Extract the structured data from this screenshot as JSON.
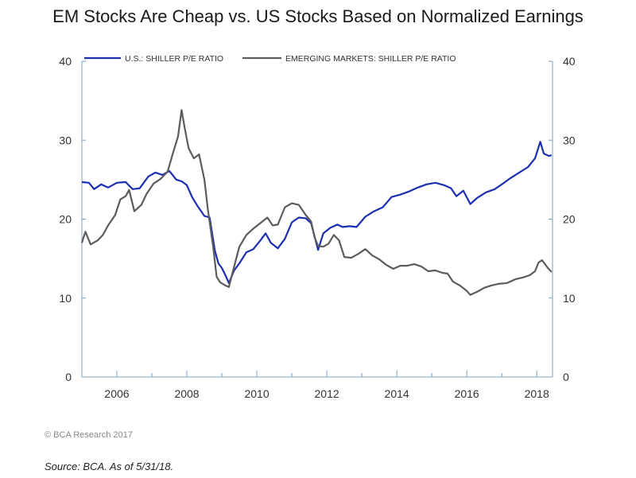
{
  "title": "EM Stocks Are Cheap vs. US Stocks Based on Normalized Earnings",
  "copyright": "© BCA Research 2017",
  "source": "Source: BCA. As of 5/31/18.",
  "colors": {
    "us": "#1c2fb0",
    "em": "#5c5c5c",
    "axis": "#7aa0c4"
  },
  "chart_data": {
    "type": "line",
    "title": "EM Stocks Are Cheap vs. US Stocks Based on Normalized Earnings",
    "xlabel": "",
    "ylabel": "",
    "xlim": [
      2005.0,
      2018.45
    ],
    "ylim": [
      0,
      40
    ],
    "y_ticks": [
      0,
      10,
      20,
      30,
      40
    ],
    "x_ticks": [
      2006,
      2008,
      2010,
      2012,
      2014,
      2016,
      2018
    ],
    "grid": false,
    "legend_placement": "top-left",
    "series": [
      {
        "name": "U.S.: SHILLER P/E RATIO",
        "color": "#1c2fb0",
        "points": [
          [
            2005.0,
            24.7
          ],
          [
            2005.2,
            24.6
          ],
          [
            2005.35,
            23.8
          ],
          [
            2005.55,
            24.4
          ],
          [
            2005.75,
            24.0
          ],
          [
            2006.0,
            24.6
          ],
          [
            2006.25,
            24.7
          ],
          [
            2006.45,
            23.8
          ],
          [
            2006.65,
            23.9
          ],
          [
            2006.9,
            25.4
          ],
          [
            2007.1,
            25.9
          ],
          [
            2007.3,
            25.6
          ],
          [
            2007.5,
            26.1
          ],
          [
            2007.7,
            25.0
          ],
          [
            2007.85,
            24.8
          ],
          [
            2008.0,
            24.3
          ],
          [
            2008.15,
            22.8
          ],
          [
            2008.3,
            21.7
          ],
          [
            2008.5,
            20.4
          ],
          [
            2008.65,
            20.2
          ],
          [
            2008.8,
            16.0
          ],
          [
            2008.9,
            14.4
          ],
          [
            2009.0,
            13.8
          ],
          [
            2009.1,
            12.9
          ],
          [
            2009.2,
            11.9
          ],
          [
            2009.35,
            13.5
          ],
          [
            2009.5,
            14.4
          ],
          [
            2009.7,
            15.8
          ],
          [
            2009.9,
            16.2
          ],
          [
            2010.1,
            17.3
          ],
          [
            2010.25,
            18.2
          ],
          [
            2010.4,
            17.0
          ],
          [
            2010.6,
            16.3
          ],
          [
            2010.8,
            17.5
          ],
          [
            2011.0,
            19.6
          ],
          [
            2011.2,
            20.2
          ],
          [
            2011.4,
            20.1
          ],
          [
            2011.55,
            19.5
          ],
          [
            2011.75,
            16.1
          ],
          [
            2011.9,
            18.2
          ],
          [
            2012.1,
            18.9
          ],
          [
            2012.3,
            19.3
          ],
          [
            2012.45,
            19.0
          ],
          [
            2012.65,
            19.1
          ],
          [
            2012.85,
            19.0
          ],
          [
            2013.1,
            20.3
          ],
          [
            2013.35,
            21.0
          ],
          [
            2013.6,
            21.5
          ],
          [
            2013.85,
            22.8
          ],
          [
            2014.1,
            23.1
          ],
          [
            2014.35,
            23.5
          ],
          [
            2014.6,
            24.0
          ],
          [
            2014.85,
            24.4
          ],
          [
            2015.1,
            24.6
          ],
          [
            2015.35,
            24.3
          ],
          [
            2015.55,
            23.9
          ],
          [
            2015.7,
            22.9
          ],
          [
            2015.9,
            23.6
          ],
          [
            2016.1,
            21.9
          ],
          [
            2016.3,
            22.7
          ],
          [
            2016.55,
            23.4
          ],
          [
            2016.8,
            23.8
          ],
          [
            2017.0,
            24.4
          ],
          [
            2017.25,
            25.2
          ],
          [
            2017.5,
            25.9
          ],
          [
            2017.75,
            26.6
          ],
          [
            2017.95,
            27.7
          ],
          [
            2018.1,
            29.8
          ],
          [
            2018.2,
            28.3
          ],
          [
            2018.35,
            28.0
          ],
          [
            2018.42,
            28.1
          ]
        ]
      },
      {
        "name": "EMERGING MARKETS: SHILLER P/E RATIO",
        "color": "#5c5c5c",
        "points": [
          [
            2005.0,
            17.0
          ],
          [
            2005.1,
            18.4
          ],
          [
            2005.25,
            16.8
          ],
          [
            2005.45,
            17.3
          ],
          [
            2005.6,
            18.0
          ],
          [
            2005.75,
            19.2
          ],
          [
            2005.95,
            20.5
          ],
          [
            2006.1,
            22.5
          ],
          [
            2006.25,
            22.9
          ],
          [
            2006.35,
            23.7
          ],
          [
            2006.5,
            21.0
          ],
          [
            2006.7,
            21.8
          ],
          [
            2006.85,
            23.2
          ],
          [
            2007.05,
            24.5
          ],
          [
            2007.25,
            25.1
          ],
          [
            2007.45,
            26.0
          ],
          [
            2007.6,
            28.3
          ],
          [
            2007.75,
            30.5
          ],
          [
            2007.85,
            33.8
          ],
          [
            2007.95,
            31.3
          ],
          [
            2008.05,
            29.0
          ],
          [
            2008.2,
            27.7
          ],
          [
            2008.35,
            28.2
          ],
          [
            2008.5,
            25.0
          ],
          [
            2008.6,
            21.2
          ],
          [
            2008.75,
            16.5
          ],
          [
            2008.85,
            12.7
          ],
          [
            2008.95,
            12.0
          ],
          [
            2009.1,
            11.6
          ],
          [
            2009.2,
            11.4
          ],
          [
            2009.35,
            14.0
          ],
          [
            2009.5,
            16.5
          ],
          [
            2009.7,
            18.0
          ],
          [
            2009.9,
            18.8
          ],
          [
            2010.1,
            19.5
          ],
          [
            2010.3,
            20.2
          ],
          [
            2010.45,
            19.2
          ],
          [
            2010.6,
            19.3
          ],
          [
            2010.8,
            21.5
          ],
          [
            2011.0,
            22.0
          ],
          [
            2011.2,
            21.8
          ],
          [
            2011.4,
            20.5
          ],
          [
            2011.55,
            19.7
          ],
          [
            2011.65,
            17.7
          ],
          [
            2011.75,
            16.6
          ],
          [
            2011.9,
            16.5
          ],
          [
            2012.05,
            16.9
          ],
          [
            2012.2,
            18.0
          ],
          [
            2012.35,
            17.3
          ],
          [
            2012.5,
            15.2
          ],
          [
            2012.7,
            15.1
          ],
          [
            2012.9,
            15.6
          ],
          [
            2013.1,
            16.2
          ],
          [
            2013.3,
            15.4
          ],
          [
            2013.5,
            14.9
          ],
          [
            2013.7,
            14.2
          ],
          [
            2013.9,
            13.7
          ],
          [
            2014.1,
            14.1
          ],
          [
            2014.3,
            14.1
          ],
          [
            2014.5,
            14.3
          ],
          [
            2014.7,
            14.0
          ],
          [
            2014.9,
            13.4
          ],
          [
            2015.1,
            13.5
          ],
          [
            2015.3,
            13.2
          ],
          [
            2015.45,
            13.1
          ],
          [
            2015.6,
            12.1
          ],
          [
            2015.8,
            11.6
          ],
          [
            2016.0,
            10.9
          ],
          [
            2016.1,
            10.4
          ],
          [
            2016.3,
            10.8
          ],
          [
            2016.5,
            11.3
          ],
          [
            2016.7,
            11.6
          ],
          [
            2016.9,
            11.8
          ],
          [
            2017.15,
            11.9
          ],
          [
            2017.4,
            12.4
          ],
          [
            2017.6,
            12.6
          ],
          [
            2017.8,
            12.9
          ],
          [
            2017.95,
            13.4
          ],
          [
            2018.05,
            14.5
          ],
          [
            2018.15,
            14.8
          ],
          [
            2018.3,
            13.9
          ],
          [
            2018.42,
            13.3
          ]
        ]
      }
    ]
  }
}
